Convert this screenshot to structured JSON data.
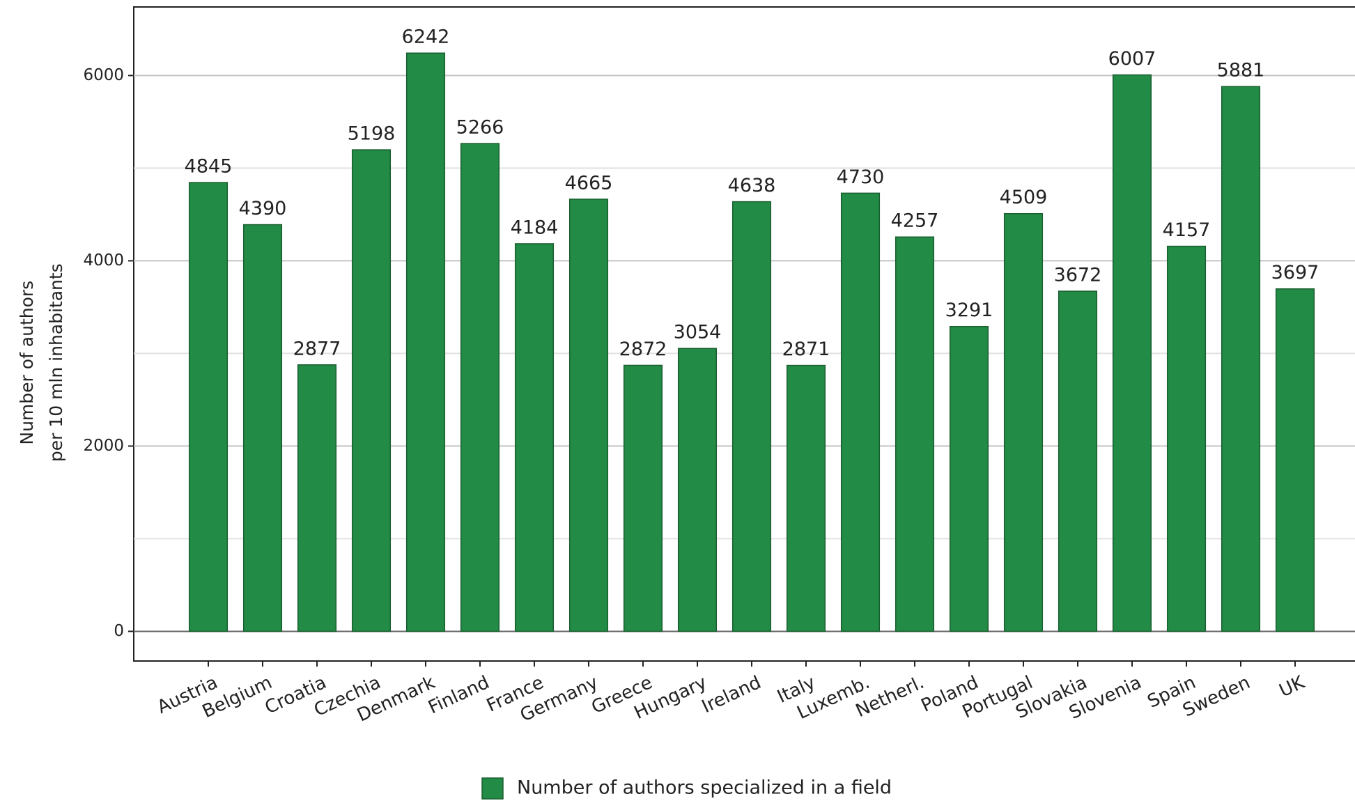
{
  "chart_data": {
    "type": "bar",
    "ylabel": [
      "Number of authors",
      "per 10 mln inhabitants"
    ],
    "categories": [
      "Austria",
      "Belgium",
      "Croatia",
      "Czechia",
      "Denmark",
      "Finland",
      "France",
      "Germany",
      "Greece",
      "Hungary",
      "Ireland",
      "Italy",
      "Luxemb.",
      "Netherl.",
      "Poland",
      "Portugal",
      "Slovakia",
      "Slovenia",
      "Spain",
      "Sweden",
      "UK"
    ],
    "category_label_colors": [
      "#333333",
      "#333333",
      "#c8102e",
      "#c8102e",
      "#333333",
      "#333333",
      "#333333",
      "#333333",
      "#333333",
      "#c8102e",
      "#333333",
      "#333333",
      "#333333",
      "#333333",
      "#c8102e",
      "#333333",
      "#c8102e",
      "#c8102e",
      "#333333",
      "#333333",
      "#333333"
    ],
    "series": [
      {
        "name": "Number of authors specialized in a field",
        "color": "#228b45",
        "values": [
          4845,
          4390,
          2877,
          5198,
          6242,
          5266,
          4184,
          4665,
          2872,
          3054,
          4638,
          2871,
          4730,
          4257,
          3291,
          4509,
          3672,
          6007,
          4157,
          5881,
          3697
        ]
      }
    ],
    "ylim": [
      -320,
      6740
    ],
    "yticks": [
      0,
      2000,
      4000,
      6000
    ],
    "yminor_grid": [
      1000,
      3000,
      5000
    ],
    "grid": true,
    "legend": "bottom"
  }
}
